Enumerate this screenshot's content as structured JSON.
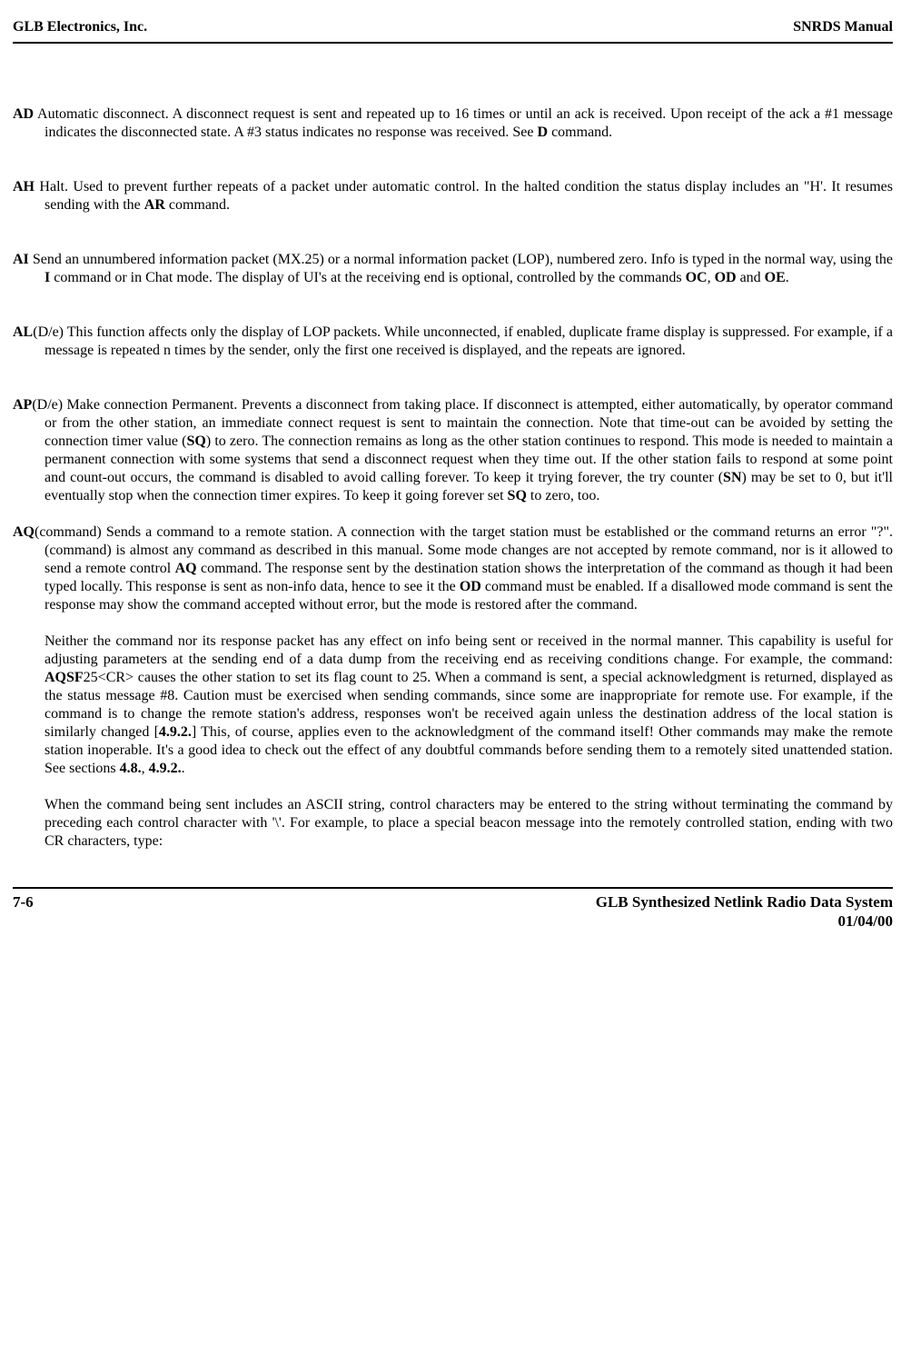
{
  "header": {
    "left": "GLB Electronics, Inc.",
    "right": "SNRDS  Manual"
  },
  "entries": {
    "ad": {
      "term": "AD",
      "text_a": "  Automatic disconnect. A disconnect request is sent and repeated up to 16 times or until an ack is received. Upon receipt of the ack a #1 message indicates the disconnected state. A #3 status indicates no response was received. See ",
      "b1": "D",
      "text_b": " command."
    },
    "ah": {
      "term": "AH",
      "text_a": "  Halt. Used to prevent further repeats of a packet under automatic control. In the halted condition the status display includes an \"H'. It resumes sending with the ",
      "b1": "AR",
      "text_b": " command."
    },
    "ai": {
      "term": "AI",
      "text_a": "  Send an unnumbered information packet (MX.25) or a normal information packet (LOP), numbered zero. Info is typed in the normal way, using the ",
      "b1": "I",
      "text_b": " command or in Chat mode. The display of UI's at the receiving end is optional, controlled by the commands ",
      "b2": "OC",
      "sep1": ", ",
      "b3": "OD",
      "sep2": " and ",
      "b4": "OE",
      "text_c": "."
    },
    "al": {
      "term": "AL",
      "suffix": "(D/e)",
      "text_a": "  This function affects only the display of LOP packets. While unconnected, if enabled, duplicate frame display is suppressed. For example, if a message is repeated n times by the sender, only the first one received is displayed, and the repeats are ignored."
    },
    "ap": {
      "term": "AP",
      "suffix": "(D/e)",
      "text_a": "  Make connection Permanent. Prevents a disconnect from taking place. If disconnect is attempted, either automatically, by operator command or from the other station, an immediate connect request is sent to maintain the connection. Note that time-out can be avoided by setting the connection timer value (",
      "b1": "SQ",
      "text_b": ") to zero. The connection remains as long as the other station continues to respond. This mode is needed to maintain a permanent connection with some systems that send a disconnect request when they time out. If the other station fails to respond at some point and count-out occurs, the command is disabled to avoid calling forever. To keep it trying forever, the try counter (",
      "b2": "SN",
      "text_c": ") may be set to 0, but it'll eventually stop when the connection timer expires. To keep it going forever set ",
      "b3": "SQ",
      "text_d": " to zero, too."
    },
    "aq": {
      "term": "AQ",
      "suffix": "(command)",
      "text_a": " Sends a command to a remote station. A connection with the target station must be established or the command returns an error \"?\". (command) is almost any command as described in this manual. Some mode changes are not accepted by remote command, nor is it allowed to send a remote control ",
      "b1": "AQ",
      "text_b": " command. The response sent by the destination station shows the interpretation of the command as though it had been typed locally. This response is sent as non-info data, hence to see it the ",
      "b2": "OD",
      "text_c": " command must be enabled. If a disallowed mode command is sent the response may show the command accepted without error, but the mode is restored after the command."
    },
    "aq2": {
      "text_a": "Neither the command nor its response packet has any effect on info being sent or received in the normal manner. This capability is useful for adjusting parameters at the sending end of a data dump from the receiving end as receiving conditions change. For example, the command: ",
      "b1": "AQSF",
      "text_b": "25<CR> causes the other station to set its flag count to 25. When a command is sent, a special acknowledgment is returned, displayed as the status message #8. Caution must be exercised when sending commands, since some are inappropriate for remote use. For example, if the command is to change the remote station's address, responses won't be received again unless the destination address of the local station is similarly changed [",
      "b2": "4.9.2.",
      "text_c": "] This, of course, applies even to the acknowledgment of the command itself! Other commands may make the remote station inoperable. It's a good idea to check out the effect of any doubtful commands before sending them to a remotely sited unattended station. See sections ",
      "b3": "4.8.",
      "sep1": ", ",
      "b4": "4.9.2.",
      "text_d": "."
    },
    "aq3": {
      "text_a": "When the command being sent includes an ASCII string, control characters may be entered to the string without terminating the command by preceding each control character with '\\'. For example, to place a special beacon message into the remotely controlled station, ending with two CR characters, type:"
    }
  },
  "footer": {
    "left": "7-6",
    "right1": "GLB Synthesized Netlink Radio Data System",
    "right2": "01/04/00"
  }
}
